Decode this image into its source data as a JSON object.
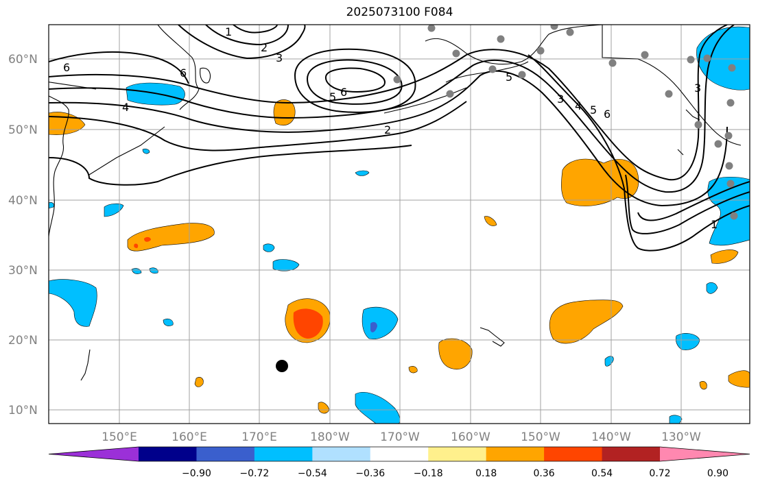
{
  "title": "2025073100 F084",
  "lat_labels": [
    "60°N",
    "50°N",
    "40°N",
    "30°N",
    "20°N",
    "10°N"
  ],
  "lon_labels": [
    "150°E",
    "160°E",
    "170°E",
    "180°W",
    "170°W",
    "160°W",
    "150°W",
    "140°W",
    "130°W"
  ],
  "colorbar": {
    "ticks": [
      "−0.90",
      "−0.72",
      "−0.54",
      "−0.36",
      "−0.18",
      "0.18",
      "0.36",
      "0.54",
      "0.72",
      "0.90"
    ],
    "colors": [
      "#9b30d8",
      "#00008b",
      "#3a5fcd",
      "#00bfff",
      "#b0e0ff",
      "#ffffff",
      "#fff08c",
      "#ffa500",
      "#ff4500",
      "#b22222",
      "#ff88b0"
    ]
  },
  "contour_labels": [
    "1",
    "2",
    "3",
    "6",
    "4",
    "6",
    "5",
    "6",
    "2",
    "3",
    "4",
    "5",
    "6",
    "3",
    "1",
    "5"
  ],
  "colors": {
    "positive": "#ffa500",
    "positive_strong": "#ff4500",
    "negative": "#00bfff",
    "negative_strong": "#3a5fcd",
    "grid": "#a0a0a0",
    "station_marker": "#808080"
  }
}
